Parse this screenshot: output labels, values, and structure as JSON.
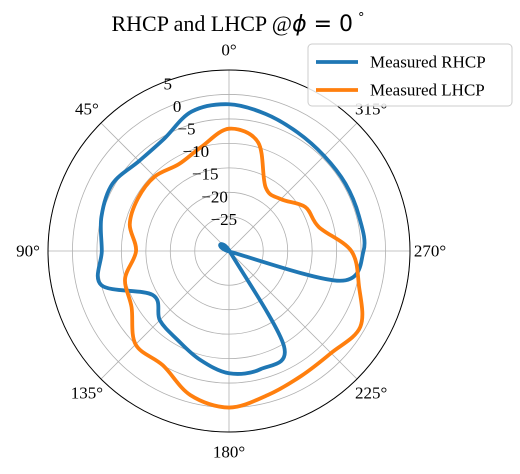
{
  "chart_data": {
    "type": "line",
    "projection": "polar",
    "title_prefix": "RHCP and LHCP @",
    "title_phi": "ϕ",
    "title_eq": " = 0",
    "title_deg": "°",
    "theta_zero_location": "top",
    "theta_direction": "counterclockwise",
    "radial_range": [
      -32,
      5
    ],
    "radial_ticks": [
      5,
      0,
      -5,
      -10,
      -15,
      -20,
      -25
    ],
    "radial_tick_labels": [
      "5",
      "0",
      "−5",
      "−10",
      "−15",
      "−20",
      "−25"
    ],
    "angle_ticks": [
      0,
      45,
      90,
      135,
      180,
      225,
      270,
      315
    ],
    "angle_tick_labels": [
      "0°",
      "45°",
      "90°",
      "135°",
      "180°",
      "225°",
      "270°",
      "315°"
    ],
    "grid": true,
    "legend_position": "top-right",
    "angles_deg": [
      0,
      15,
      30,
      45,
      60,
      75,
      90,
      105,
      120,
      135,
      150,
      165,
      180,
      195,
      210,
      225,
      240,
      255,
      270,
      285,
      300,
      315,
      330,
      345
    ],
    "series": [
      {
        "name": "Measured RHCP",
        "color": "#1f77b4",
        "values": [
          -2,
          -2.5,
          -5.5,
          -6,
          -4.5,
          -5,
          -6,
          -5,
          -14,
          -12,
          -11,
          -9,
          -7,
          -7,
          -9.5,
          -31.6,
          -31.6,
          -8.5,
          -4.5,
          -4.5,
          -4.5,
          -4.5,
          -4,
          -3
        ]
      },
      {
        "name": "Measured LHCP",
        "color": "#ff7f0e",
        "values": [
          -7,
          -10,
          -11.5,
          -10.5,
          -10.5,
          -11,
          -13,
          -10,
          -9,
          -5,
          -5,
          -1.5,
          0,
          -1.5,
          -2.5,
          -2.5,
          -1,
          -4.5,
          -7,
          -13,
          -14,
          -17,
          -17,
          -9
        ]
      }
    ]
  }
}
